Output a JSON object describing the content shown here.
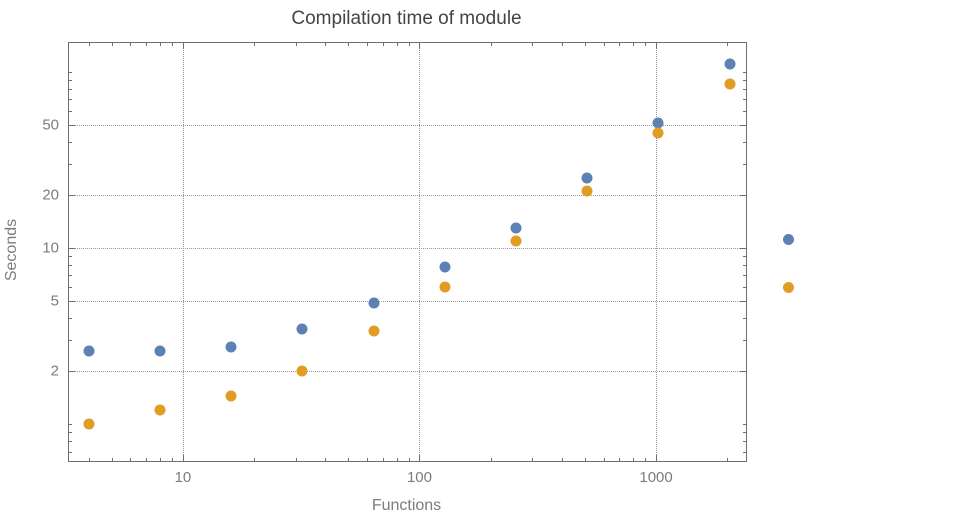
{
  "chart_data": {
    "type": "scatter",
    "title": "Compilation time of module",
    "xlabel": "Functions",
    "ylabel": "Seconds",
    "xscale": "log",
    "yscale": "log",
    "xlim": [
      3.3,
      2400
    ],
    "ylim": [
      0.62,
      146
    ],
    "grid": true,
    "x": [
      4,
      8,
      16,
      32,
      64,
      128,
      256,
      512,
      1024,
      2048
    ],
    "series": [
      {
        "color": "#5e81b5",
        "values": [
          2.6,
          2.6,
          2.75,
          3.5,
          4.9,
          7.8,
          13,
          25,
          51,
          111
        ]
      },
      {
        "color": "#e19c24",
        "values": [
          1.0,
          1.2,
          1.45,
          2.0,
          3.4,
          6.0,
          11,
          21,
          45,
          86
        ]
      }
    ],
    "x_ticks": [
      10,
      100,
      1000
    ],
    "y_ticks": [
      2,
      5,
      10,
      20,
      50
    ],
    "legend_position": "right",
    "colors": {
      "grid": "#9a9a9a",
      "frame": "#6e6e6e",
      "tick_label": "#7c7c7c",
      "title": "#444444"
    }
  }
}
